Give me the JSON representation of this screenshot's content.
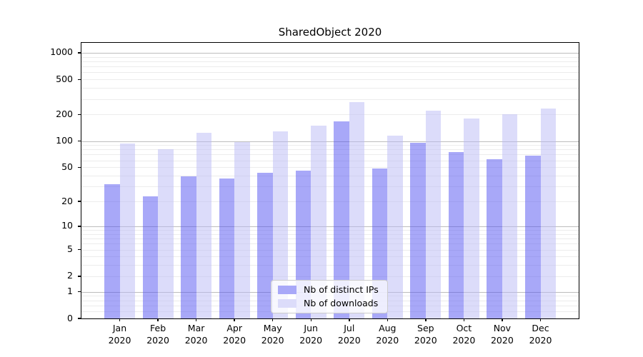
{
  "title": "SharedObject 2020",
  "chart_data": {
    "type": "bar",
    "title": "SharedObject 2020",
    "y_scale": "log10(value+1)",
    "ylim": [
      0,
      1270
    ],
    "y_ticks": [
      0,
      1,
      2,
      5,
      10,
      20,
      50,
      100,
      200,
      500,
      1000
    ],
    "y_major_gridlines": [
      1,
      10,
      100,
      1000
    ],
    "grid": true,
    "legend_position": "lower-center-inside",
    "categories": [
      {
        "month": "Jan",
        "year": "2020"
      },
      {
        "month": "Feb",
        "year": "2020"
      },
      {
        "month": "Mar",
        "year": "2020"
      },
      {
        "month": "Apr",
        "year": "2020"
      },
      {
        "month": "May",
        "year": "2020"
      },
      {
        "month": "Jun",
        "year": "2020"
      },
      {
        "month": "Jul",
        "year": "2020"
      },
      {
        "month": "Aug",
        "year": "2020"
      },
      {
        "month": "Sep",
        "year": "2020"
      },
      {
        "month": "Oct",
        "year": "2020"
      },
      {
        "month": "Nov",
        "year": "2020"
      },
      {
        "month": "Dec",
        "year": "2020"
      }
    ],
    "series": [
      {
        "name": "Nb of distinct IPs",
        "fill": "rgba(82,82,242,0.5)",
        "legend_color": "#a8a8f8",
        "values": [
          32,
          23,
          39,
          37,
          43,
          46,
          166,
          48,
          96,
          75,
          62,
          68
        ]
      },
      {
        "name": "Nb of downloads",
        "fill": "rgba(185,185,245,0.5)",
        "legend_color": "#dcdcfa",
        "values": [
          94,
          80,
          125,
          98,
          130,
          150,
          278,
          115,
          220,
          182,
          200,
          234
        ]
      }
    ]
  },
  "colors": {
    "background": "#ffffff",
    "spine": "#000000",
    "grid_major": "#bdbdbd",
    "grid_minor": "#ececec",
    "text": "#000000"
  }
}
